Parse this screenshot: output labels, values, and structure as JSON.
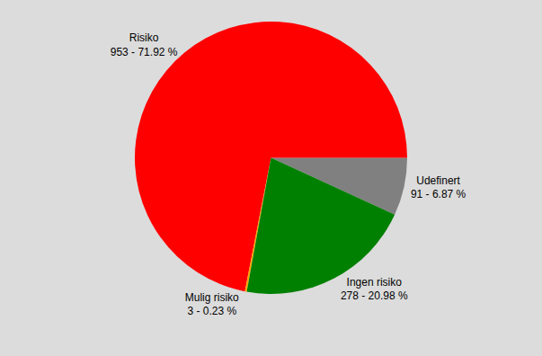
{
  "chart_data": {
    "type": "pie",
    "categories": [
      "Udefinert",
      "Risiko",
      "Mulig risiko",
      "Ingen risiko"
    ],
    "values": [
      91,
      953,
      3,
      278
    ],
    "value_labels": [
      "91 - 6.87 %",
      "953 - 71.92 %",
      "3 - 0.23 %",
      "278 - 20.98 %"
    ],
    "colors": [
      "#808080",
      "#ff0000",
      "#ffa500",
      "#008000"
    ],
    "data_labels": true
  }
}
